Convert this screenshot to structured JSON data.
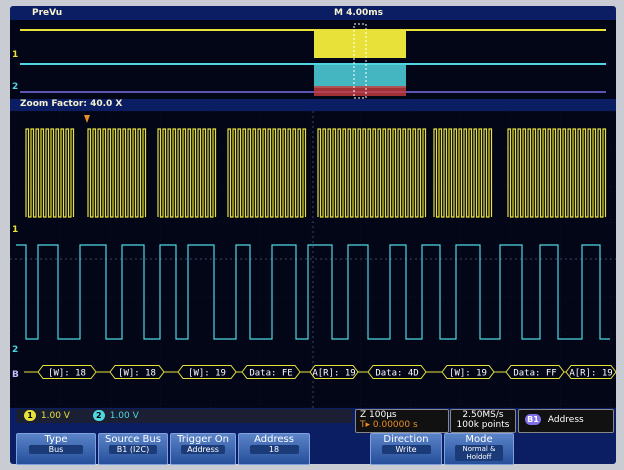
{
  "preview": {
    "title": "PreVu",
    "timebase": "M 4.00ms"
  },
  "zoom": {
    "label": "Zoom Factor: 40.0 X"
  },
  "channels": {
    "ch1": {
      "marker": "1",
      "color": "#e8e13a"
    },
    "ch2": {
      "marker": "2",
      "color": "#4fd6e0"
    },
    "bus": {
      "marker": "B",
      "color": "#7f6fe6"
    }
  },
  "decode_packets": [
    {
      "label": "[W]: 18"
    },
    {
      "label": "[W]: 18"
    },
    {
      "label": "[W]: 19"
    },
    {
      "label": "Data: FE"
    },
    {
      "label": "A[R]: 19"
    },
    {
      "label": "Data: 4D"
    },
    {
      "label": "[W]: 19"
    },
    {
      "label": "Data: FF"
    },
    {
      "label": "A[R]: 19"
    }
  ],
  "readouts": {
    "ch1_id": "1",
    "ch1_scale": "1.00 V",
    "ch2_id": "2",
    "ch2_scale": "1.00 V",
    "zoom_time": "Z 100µs",
    "trigger_marker": "T",
    "trigger_pos": "0.00000 s",
    "sample_rate": "2.50MS/s",
    "record_length": "100k points",
    "bus_id": "B1",
    "bus_trigger": "Address"
  },
  "softkeys": [
    {
      "label": "Type",
      "value": "Bus"
    },
    {
      "label": "Source Bus",
      "value": "B1 (I2C)"
    },
    {
      "label": "Trigger On",
      "value": "Address"
    },
    {
      "label": "Address",
      "value": "18"
    },
    {
      "label": "Direction",
      "value": "Write"
    },
    {
      "label": "Mode",
      "value": "Normal & Holdoff"
    }
  ]
}
